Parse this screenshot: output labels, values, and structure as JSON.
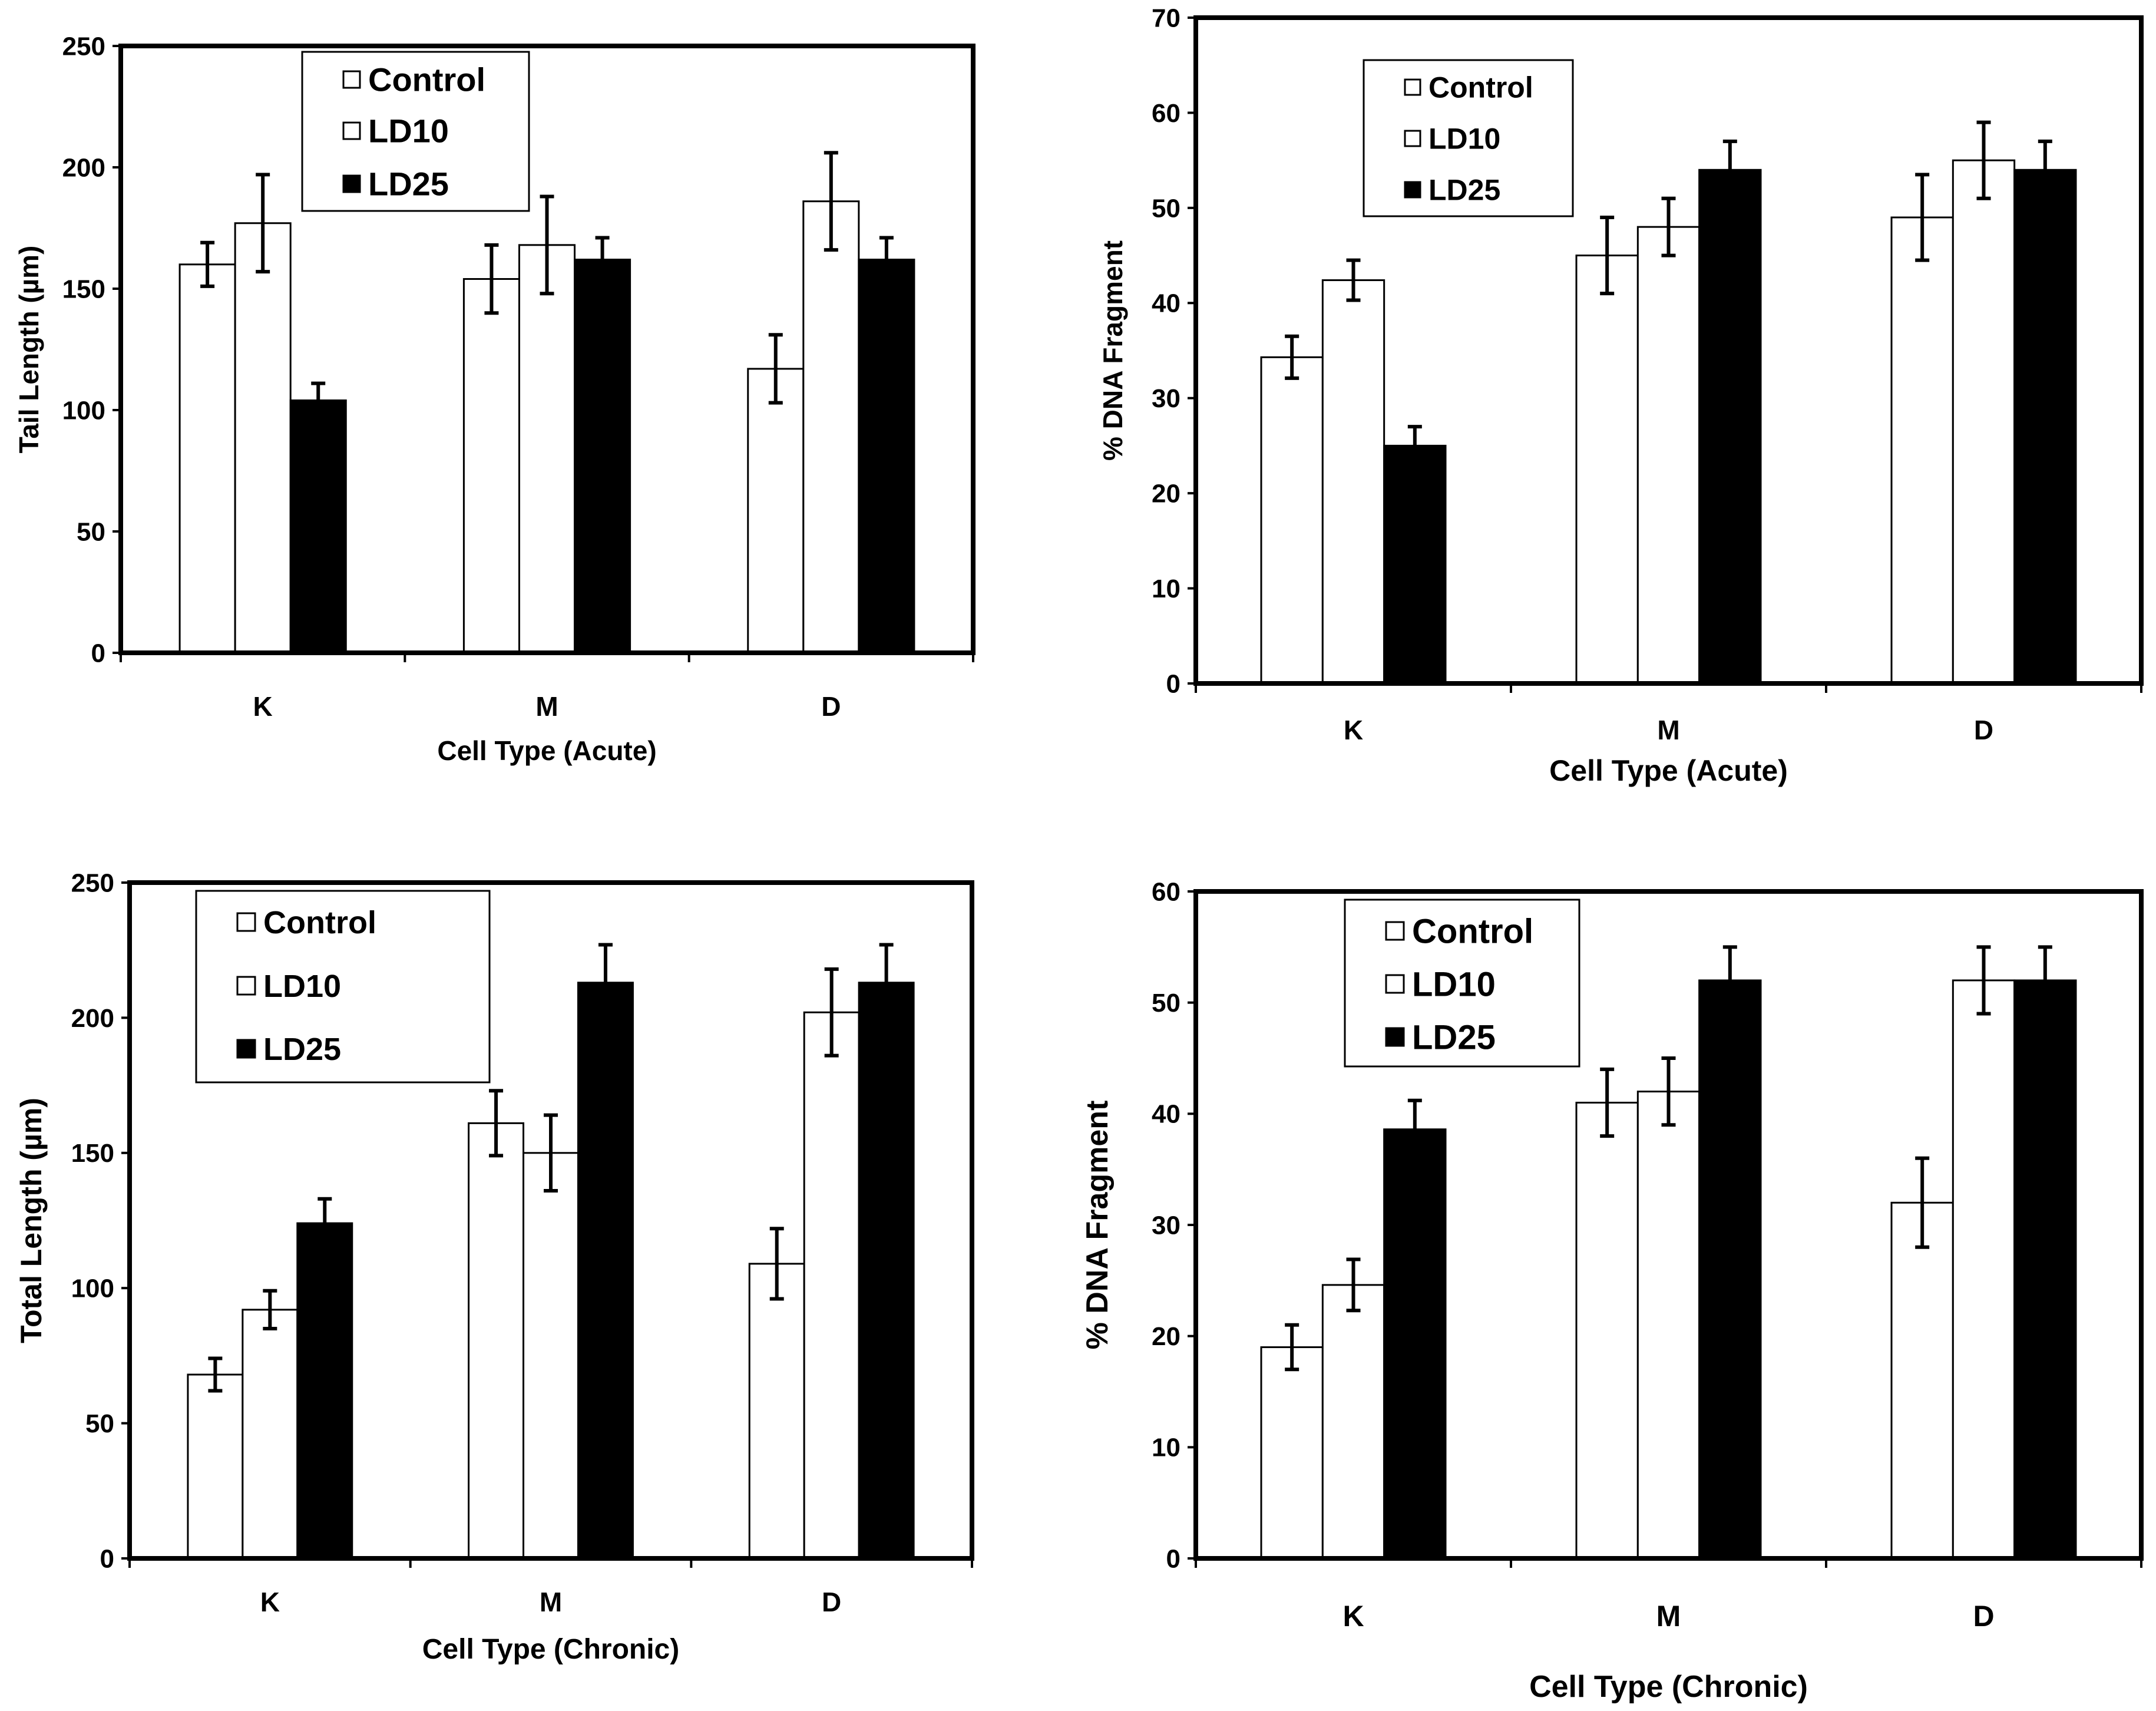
{
  "colors": {
    "white_bar": "#ffffff",
    "black_bar": "#000000",
    "frame": "#000000",
    "background": "#ffffff"
  },
  "chart_data": [
    {
      "type": "bar",
      "title": "",
      "xlabel": "Cell Type (Acute)",
      "ylabel": "Tail Length (µm)",
      "ylim": [
        0,
        250
      ],
      "yticks": [
        0,
        50,
        100,
        150,
        200,
        250
      ],
      "categories": [
        "K",
        "M",
        "D"
      ],
      "legend": {
        "placement": "top-left",
        "entries": [
          "Control",
          "LD10",
          "LD25"
        ]
      },
      "series": [
        {
          "name": "Control",
          "fill": "white",
          "values": [
            160,
            154,
            117
          ],
          "errors": [
            9,
            14,
            14
          ]
        },
        {
          "name": "LD10",
          "fill": "white",
          "values": [
            177,
            168,
            186
          ],
          "errors": [
            20,
            20,
            20
          ]
        },
        {
          "name": "LD25",
          "fill": "black",
          "values": [
            104,
            162,
            162
          ],
          "errors": [
            7,
            9,
            9
          ]
        }
      ]
    },
    {
      "type": "bar",
      "title": "",
      "xlabel": "Cell Type (Acute)",
      "ylabel": "% DNA Fragment",
      "ylim": [
        0,
        70
      ],
      "yticks": [
        0,
        10,
        20,
        30,
        40,
        50,
        60,
        70
      ],
      "categories": [
        "K",
        "M",
        "D"
      ],
      "legend": {
        "placement": "top-left",
        "entries": [
          "Control",
          "LD10",
          "LD25"
        ]
      },
      "series": [
        {
          "name": "Control",
          "fill": "white",
          "values": [
            34.3,
            45,
            49
          ],
          "errors": [
            2.2,
            4,
            4.5
          ]
        },
        {
          "name": "LD10",
          "fill": "white",
          "values": [
            42.4,
            48,
            55
          ],
          "errors": [
            2.1,
            3,
            4
          ]
        },
        {
          "name": "LD25",
          "fill": "black",
          "values": [
            25,
            54,
            54
          ],
          "errors": [
            2,
            3,
            3
          ]
        }
      ]
    },
    {
      "type": "bar",
      "title": "",
      "xlabel": "Cell Type (Chronic)",
      "ylabel": "Total Length (µm)",
      "ylim": [
        0,
        250
      ],
      "yticks": [
        0,
        50,
        100,
        150,
        200,
        250
      ],
      "categories": [
        "K",
        "M",
        "D"
      ],
      "legend": {
        "placement": "top-left",
        "entries": [
          "Control",
          "LD10",
          "LD25"
        ]
      },
      "series": [
        {
          "name": "Control",
          "fill": "white",
          "values": [
            68,
            161,
            109
          ],
          "errors": [
            6,
            12,
            13
          ]
        },
        {
          "name": "LD10",
          "fill": "white",
          "values": [
            92,
            150,
            202
          ],
          "errors": [
            7,
            14,
            16
          ]
        },
        {
          "name": "LD25",
          "fill": "black",
          "values": [
            124,
            213,
            213
          ],
          "errors": [
            9,
            14,
            14
          ]
        }
      ]
    },
    {
      "type": "bar",
      "title": "",
      "xlabel": "Cell Type (Chronic)",
      "ylabel": "% DNA Fragment",
      "ylim": [
        0,
        60
      ],
      "yticks": [
        0,
        10,
        20,
        30,
        40,
        50,
        60
      ],
      "categories": [
        "K",
        "M",
        "D"
      ],
      "legend": {
        "placement": "top-left",
        "entries": [
          "Control",
          "LD10",
          "LD25"
        ]
      },
      "series": [
        {
          "name": "Control",
          "fill": "white",
          "values": [
            19,
            41,
            32
          ],
          "errors": [
            2,
            3,
            4
          ]
        },
        {
          "name": "LD10",
          "fill": "white",
          "values": [
            24.6,
            42,
            52
          ],
          "errors": [
            2.3,
            3,
            3
          ]
        },
        {
          "name": "LD25",
          "fill": "black",
          "values": [
            38.6,
            52,
            52
          ],
          "errors": [
            2.6,
            3,
            3
          ]
        }
      ]
    }
  ]
}
